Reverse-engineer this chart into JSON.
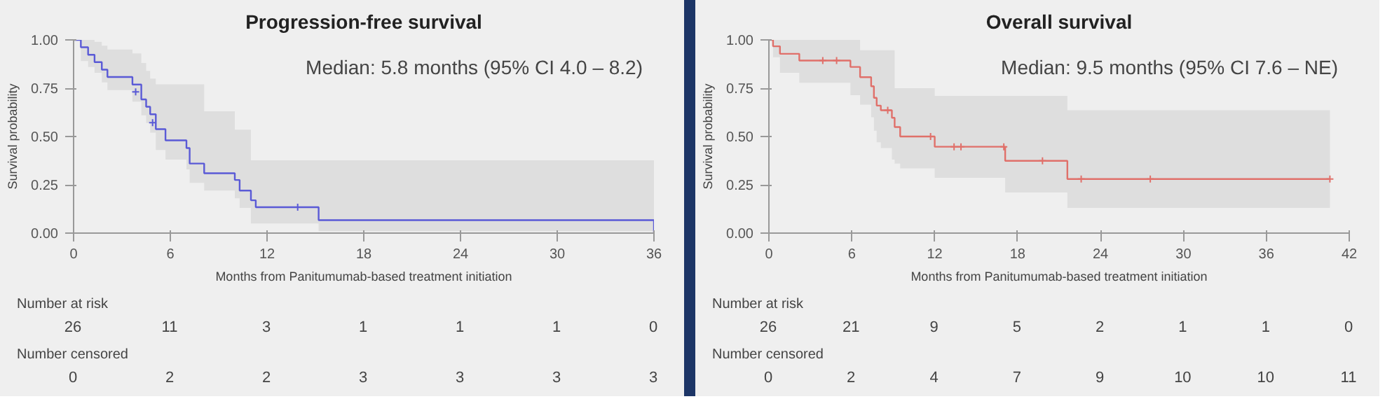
{
  "chart_data": [
    {
      "type": "step",
      "title": "Progression-free survival",
      "xlabel": "Months from Panitumumab-based treatment initiation",
      "ylabel": "Survival probability",
      "xlim": [
        0,
        36
      ],
      "ylim": [
        0,
        1
      ],
      "xticks": [
        0,
        6,
        12,
        18,
        24,
        30,
        36
      ],
      "yticks": [
        {
          "value": 0,
          "label": "0.00"
        },
        {
          "value": 0.25,
          "label": "0.25"
        },
        {
          "value": 0.5,
          "label": "0.50"
        },
        {
          "value": 0.75,
          "label": "0.75"
        },
        {
          "value": 1,
          "label": "1.00"
        }
      ],
      "grid": false,
      "series": [
        {
          "color": "#5a5ad6",
          "x": [
            0,
            0.45,
            0.9,
            1.3,
            1.75,
            2.1,
            3.65,
            4.2,
            4.5,
            4.75,
            5.1,
            5.7,
            7.0,
            7.2,
            8.1,
            10.0,
            10.3,
            11.0,
            11.3,
            15.2,
            36
          ],
          "values": [
            1,
            0.962,
            0.923,
            0.885,
            0.846,
            0.808,
            0.769,
            0.692,
            0.654,
            0.615,
            0.538,
            0.48,
            0.44,
            0.36,
            0.31,
            0.275,
            0.22,
            0.17,
            0.134,
            0.067,
            0
          ],
          "lower": [
            1,
            0.89,
            0.86,
            0.83,
            0.78,
            0.74,
            0.68,
            0.61,
            0.57,
            0.52,
            0.43,
            0.38,
            0.33,
            0.26,
            0.22,
            0.18,
            0.13,
            0.05,
            0.05,
            0.01,
            0.01
          ],
          "upper": [
            1,
            1,
            1,
            0.99,
            0.97,
            0.95,
            0.93,
            0.88,
            0.84,
            0.8,
            0.77,
            0.77,
            0.77,
            0.77,
            0.63,
            0.535,
            0.535,
            0.377,
            0.377,
            0.377,
            0.377
          ]
        },
        {
          "type": "scatter",
          "marker": "cross",
          "color": "#5a5ad6",
          "x": [
            3.85,
            4.9,
            13.9
          ],
          "values": [
            0.731,
            0.572,
            0.134
          ]
        }
      ],
      "annotations": [
        "Median: 5.8 months (95% CI 4.0 – 8.2)",
        "Number at risk",
        "26 11 3 1 1 1 0",
        "Number censored",
        "0 2 2 3 3 3 3"
      ]
    },
    {
      "type": "step",
      "title": "Overall survival",
      "xlabel": "Months from Panitumumab-based treatment initiation",
      "ylabel": "Survival probability",
      "xlim": [
        0,
        42
      ],
      "ylim": [
        0,
        1
      ],
      "xticks": [
        0,
        6,
        12,
        18,
        24,
        30,
        36,
        42
      ],
      "yticks": [
        {
          "value": 0,
          "label": "0.00"
        },
        {
          "value": 0.25,
          "label": "0.25"
        },
        {
          "value": 0.5,
          "label": "0.50"
        },
        {
          "value": 0.75,
          "label": "0.75"
        },
        {
          "value": 1,
          "label": "1.00"
        }
      ],
      "grid": false,
      "series": [
        {
          "color": "#e0706a",
          "x": [
            0,
            0.3,
            0.8,
            2.2,
            5.9,
            6.6,
            7.4,
            7.6,
            7.8,
            8.1,
            8.9,
            9.1,
            9.5,
            12.0,
            17.1,
            21.6,
            40.6
          ],
          "values": [
            1,
            0.967,
            0.928,
            0.893,
            0.86,
            0.807,
            0.76,
            0.7,
            0.66,
            0.636,
            0.597,
            0.549,
            0.5,
            0.447,
            0.374,
            0.28,
            0.28
          ],
          "lower": [
            1,
            0.91,
            0.83,
            0.778,
            0.714,
            0.665,
            0.6,
            0.53,
            0.47,
            0.44,
            0.38,
            0.36,
            0.335,
            0.286,
            0.21,
            0.13,
            0.13
          ],
          "upper": [
            1,
            1,
            1,
            1,
            1,
            0.947,
            0.947,
            0.947,
            0.947,
            0.947,
            0.947,
            0.75,
            0.75,
            0.71,
            0.71,
            0.636,
            0.636
          ]
        },
        {
          "type": "scatter",
          "marker": "cross",
          "color": "#e0706a",
          "x": [
            3.9,
            4.9,
            8.6,
            11.7,
            13.4,
            13.9,
            17.0,
            19.8,
            22.6,
            27.6,
            40.6
          ],
          "values": [
            0.893,
            0.893,
            0.636,
            0.5,
            0.447,
            0.447,
            0.447,
            0.374,
            0.28,
            0.28,
            0.28
          ]
        }
      ],
      "annotations": [
        "Median: 9.5 months (95% CI 7.6 – NE)",
        "Number at risk",
        "26 21 9 5 2 1 1 0",
        "Number censored",
        "0 2 4 7 9 10 10 11"
      ]
    }
  ]
}
